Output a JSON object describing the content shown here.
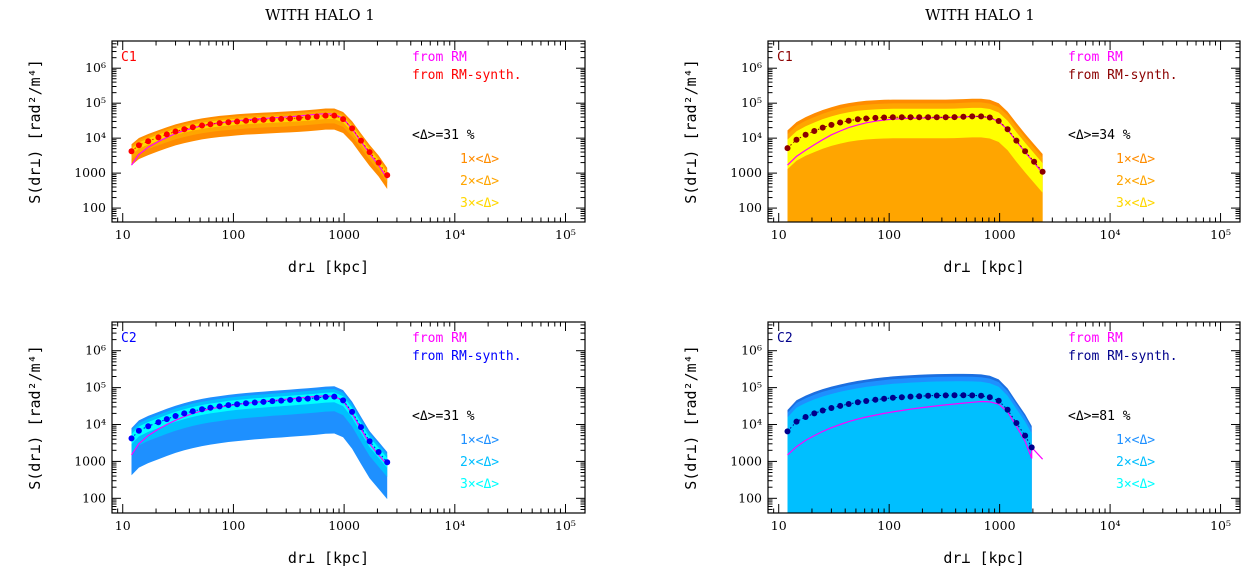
{
  "page_titles": [
    "WITH HALO 1",
    "WITH HALO 1"
  ],
  "chart_data": [
    {
      "type": "line",
      "panel_label": "C1",
      "panel_label_color": "#ff0000",
      "xlabel": "dr⊥ [kpc]",
      "ylabel": "S(dr⊥) [rad²/m⁴]",
      "xscale": "log",
      "yscale": "log",
      "xlim": [
        8,
        150000
      ],
      "ylim": [
        40,
        6000000
      ],
      "x_ticks": [
        "10",
        "100",
        "1000",
        "10⁴",
        "10⁵"
      ],
      "y_ticks": [
        "100",
        "1000",
        "10⁴",
        "10⁵",
        "10⁶"
      ],
      "legend": [
        {
          "text": "from RM",
          "color": "#ff00ff"
        },
        {
          "text": "from RM-synth.",
          "color": "#ff0000"
        }
      ],
      "delta_label": "<Δ>=31 %",
      "band_labels": [
        {
          "text": "1×<Δ>",
          "color": "#ff8c00"
        },
        {
          "text": "2×<Δ>",
          "color": "#ffa500"
        },
        {
          "text": "3×<Δ>",
          "color": "#ffd700"
        }
      ],
      "band_colors": [
        "#ffd700",
        "#ffa500",
        "#ff8c00"
      ],
      "x": [
        12,
        14,
        17,
        21,
        25,
        30,
        36,
        43,
        52,
        62,
        75,
        90,
        108,
        130,
        156,
        187,
        225,
        270,
        325,
        390,
        470,
        565,
        680,
        815,
        980,
        1180,
        1420,
        1700,
        2050,
        2450
      ],
      "rm_synth": [
        4200,
        6300,
        8200,
        10500,
        12800,
        15500,
        18000,
        20500,
        23000,
        25000,
        27000,
        28500,
        30000,
        31500,
        32500,
        33500,
        34500,
        35500,
        36500,
        37800,
        39500,
        41500,
        44000,
        44000,
        35000,
        19000,
        8500,
        4000,
        2000,
        880
      ],
      "rm": [
        1700,
        3400,
        5500,
        8000,
        10500,
        13500,
        16500,
        19500,
        22500,
        25000,
        27500,
        29500,
        31500,
        33500,
        35000,
        36500,
        38000,
        39500,
        41000,
        43000,
        45500,
        48000,
        50000,
        48500,
        37000,
        18500,
        8000,
        3600,
        1700,
        700
      ],
      "band_ratios": [
        0.2,
        0.4,
        0.6
      ]
    },
    {
      "type": "line",
      "panel_label": "C1",
      "panel_label_color": "#8b0000",
      "xlabel": "dr⊥ [kpc]",
      "ylabel": "S(dr⊥) [rad²/m⁴]",
      "xscale": "log",
      "yscale": "log",
      "xlim": [
        8,
        150000
      ],
      "ylim": [
        40,
        6000000
      ],
      "x_ticks": [
        "10",
        "100",
        "1000",
        "10⁴",
        "10⁵"
      ],
      "y_ticks": [
        "100",
        "1000",
        "10⁴",
        "10⁵",
        "10⁶"
      ],
      "legend": [
        {
          "text": "from RM",
          "color": "#ff00ff"
        },
        {
          "text": "from RM-synth.",
          "color": "#8b0000"
        }
      ],
      "delta_label": "<Δ>=34 %",
      "band_labels": [
        {
          "text": "1×<Δ>",
          "color": "#ff8c00"
        },
        {
          "text": "2×<Δ>",
          "color": "#ffa500"
        },
        {
          "text": "3×<Δ>",
          "color": "#ffd700"
        }
      ],
      "band_colors": [
        "#ffff00",
        "#ffa500",
        "#ff8c00"
      ],
      "x": [
        12,
        14.5,
        17.5,
        21,
        25,
        30,
        36,
        43,
        52,
        62,
        75,
        90,
        108,
        130,
        156,
        187,
        225,
        270,
        325,
        390,
        470,
        565,
        680,
        815,
        980,
        1180,
        1420,
        1700,
        2050,
        2450
      ],
      "rm_synth": [
        5200,
        9000,
        12500,
        16000,
        20000,
        24000,
        28000,
        31500,
        34500,
        36500,
        38000,
        39000,
        39500,
        39500,
        39500,
        39500,
        39500,
        39500,
        39500,
        40000,
        41000,
        42000,
        42000,
        39000,
        31000,
        18000,
        8500,
        4200,
        2100,
        1100
      ],
      "rm": [
        1700,
        3000,
        4500,
        6500,
        9000,
        12500,
        16000,
        20000,
        24000,
        27500,
        30500,
        33000,
        35000,
        36000,
        37000,
        37500,
        38000,
        38500,
        39000,
        39500,
        40500,
        41500,
        41500,
        38500,
        30000,
        17500,
        8200,
        4000,
        2000,
        1000
      ],
      "band_ratios": [
        0.75,
        1.5,
        2.2
      ]
    },
    {
      "type": "line",
      "panel_label": "C2",
      "panel_label_color": "#0000ff",
      "xlabel": "dr⊥ [kpc]",
      "ylabel": "S(dr⊥) [rad²/m⁴]",
      "xscale": "log",
      "yscale": "log",
      "xlim": [
        8,
        150000
      ],
      "ylim": [
        40,
        6000000
      ],
      "x_ticks": [
        "10",
        "100",
        "1000",
        "10⁴",
        "10⁵"
      ],
      "y_ticks": [
        "100",
        "1000",
        "10⁴",
        "10⁵",
        "10⁶"
      ],
      "legend": [
        {
          "text": "from RM",
          "color": "#ff00ff"
        },
        {
          "text": "from RM-synth.",
          "color": "#0000ff"
        }
      ],
      "delta_label": "<Δ>=31 %",
      "band_labels": [
        {
          "text": "1×<Δ>",
          "color": "#1e90ff"
        },
        {
          "text": "2×<Δ>",
          "color": "#00bfff"
        },
        {
          "text": "3×<Δ>",
          "color": "#00ffff"
        }
      ],
      "band_colors": [
        "#00ffff",
        "#00bfff",
        "#1e90ff"
      ],
      "x": [
        12,
        14,
        17,
        21,
        25,
        30,
        36,
        43,
        52,
        62,
        75,
        90,
        108,
        130,
        156,
        187,
        225,
        270,
        325,
        390,
        470,
        565,
        680,
        815,
        980,
        1180,
        1420,
        1700,
        2050,
        2450
      ],
      "rm_synth": [
        4200,
        6800,
        9000,
        11500,
        14000,
        17000,
        20000,
        23000,
        26000,
        28500,
        31000,
        33500,
        35500,
        37500,
        39500,
        41000,
        43000,
        44500,
        46500,
        48500,
        50500,
        53000,
        56000,
        57000,
        45000,
        22000,
        8500,
        3500,
        1800,
        950
      ],
      "rm": [
        1500,
        3000,
        5000,
        7500,
        10000,
        13000,
        16500,
        20000,
        23500,
        26500,
        29500,
        32500,
        35000,
        37500,
        40000,
        42000,
        44500,
        47000,
        49500,
        52000,
        55000,
        58000,
        60000,
        58000,
        44000,
        20000,
        7500,
        3000,
        1500,
        800
      ],
      "band_ratios": [
        0.3,
        0.6,
        0.9
      ]
    },
    {
      "type": "line",
      "panel_label": "C2",
      "panel_label_color": "#00008b",
      "xlabel": "dr⊥ [kpc]",
      "ylabel": "S(dr⊥) [rad²/m⁴]",
      "xscale": "log",
      "yscale": "log",
      "xlim": [
        8,
        150000
      ],
      "ylim": [
        40,
        6000000
      ],
      "x_ticks": [
        "10",
        "100",
        "1000",
        "10⁴",
        "10⁵"
      ],
      "y_ticks": [
        "100",
        "1000",
        "10⁴",
        "10⁵",
        "10⁶"
      ],
      "legend": [
        {
          "text": "from RM",
          "color": "#ff00ff"
        },
        {
          "text": "from RM-synth.",
          "color": "#00008b"
        }
      ],
      "delta_label": "<Δ>=81 %",
      "band_labels": [
        {
          "text": "1×<Δ>",
          "color": "#1e90ff"
        },
        {
          "text": "2×<Δ>",
          "color": "#00bfff"
        },
        {
          "text": "3×<Δ>",
          "color": "#00ffff"
        }
      ],
      "band_colors": [
        "#00bfff",
        "#1e90ff",
        "#1c6fe0"
      ],
      "x": [
        12,
        14.5,
        17.5,
        21,
        25,
        30,
        36,
        43,
        52,
        62,
        75,
        90,
        108,
        130,
        156,
        187,
        225,
        270,
        325,
        390,
        470,
        565,
        680,
        815,
        980,
        1180,
        1420,
        1700,
        1950
      ],
      "rm_synth": [
        6500,
        12000,
        16000,
        20000,
        24000,
        28000,
        32000,
        36000,
        40000,
        43500,
        47000,
        50000,
        53000,
        55000,
        57000,
        58500,
        60000,
        61000,
        61500,
        62000,
        62000,
        61500,
        60000,
        55000,
        44000,
        25000,
        11000,
        5000,
        2400
      ],
      "rm": [
        1500,
        2500,
        3700,
        5000,
        6500,
        8200,
        10000,
        12000,
        14000,
        16000,
        18000,
        20000,
        22000,
        24000,
        26000,
        28000,
        30000,
        32000,
        34000,
        36000,
        38000,
        40000,
        42000,
        41000,
        36000,
        22000,
        9000,
        3500,
        1200
      ],
      "rm_extra": [
        [
          1950,
          2400
        ],
        [
          2450,
          1150
        ]
      ],
      "band_ratios": [
        1.4,
        2.2,
        2.8
      ]
    }
  ]
}
